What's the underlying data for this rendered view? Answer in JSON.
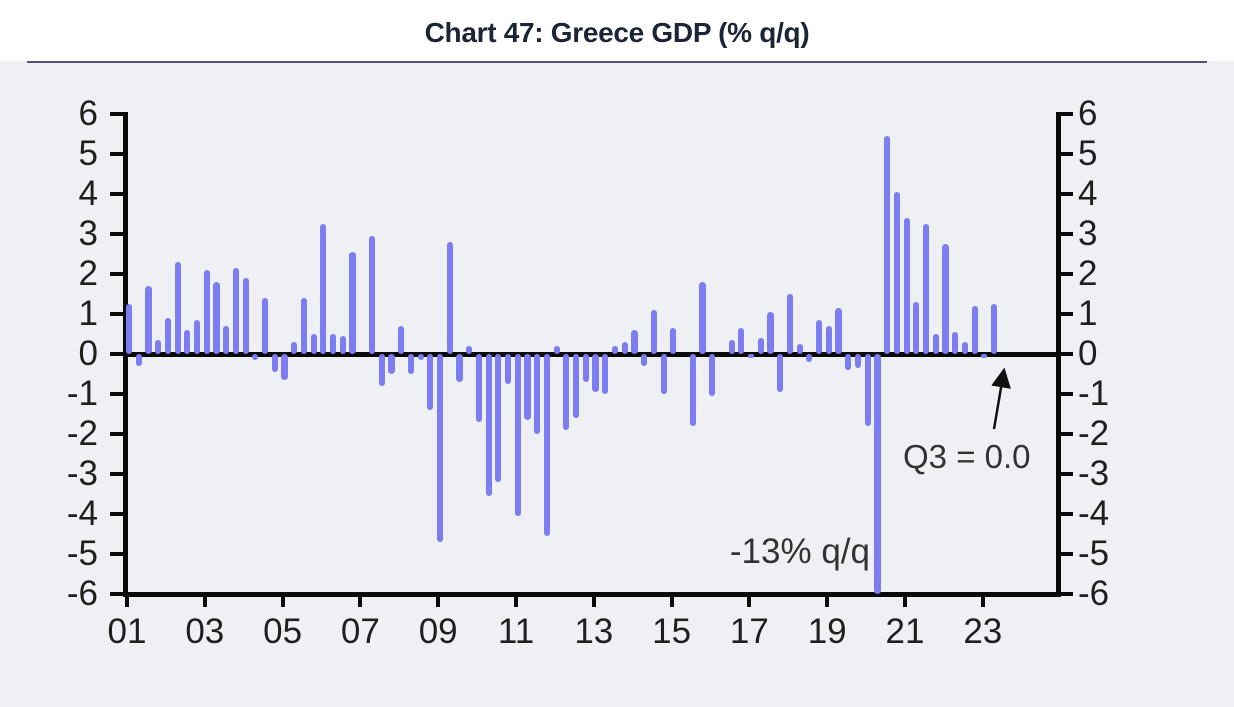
{
  "header": {
    "title": "Chart 47: Greece GDP (% q/q)"
  },
  "chart_data": {
    "type": "bar",
    "title": "Chart 47: Greece GDP (% q/q)",
    "ylabel": "% q/q",
    "xlabel": "",
    "ylim": [
      -6,
      6
    ],
    "grid": "off",
    "legend": "none",
    "dual_axis": true,
    "bar_color": "#7b7df0",
    "yticks": [
      6,
      5,
      4,
      3,
      2,
      1,
      0,
      -1,
      -2,
      -3,
      -4,
      -5,
      -6
    ],
    "xticks": [
      "01",
      "03",
      "05",
      "07",
      "09",
      "11",
      "13",
      "15",
      "17",
      "19",
      "21",
      "23"
    ],
    "categories": [
      "2001Q1",
      "2001Q2",
      "2001Q3",
      "2001Q4",
      "2002Q1",
      "2002Q2",
      "2002Q3",
      "2002Q4",
      "2003Q1",
      "2003Q2",
      "2003Q3",
      "2003Q4",
      "2004Q1",
      "2004Q2",
      "2004Q3",
      "2004Q4",
      "2005Q1",
      "2005Q2",
      "2005Q3",
      "2005Q4",
      "2006Q1",
      "2006Q2",
      "2006Q3",
      "2006Q4",
      "2007Q1",
      "2007Q2",
      "2007Q3",
      "2007Q4",
      "2008Q1",
      "2008Q2",
      "2008Q3",
      "2008Q4",
      "2009Q1",
      "2009Q2",
      "2009Q3",
      "2009Q4",
      "2010Q1",
      "2010Q2",
      "2010Q3",
      "2010Q4",
      "2011Q1",
      "2011Q2",
      "2011Q3",
      "2011Q4",
      "2012Q1",
      "2012Q2",
      "2012Q3",
      "2012Q4",
      "2013Q1",
      "2013Q2",
      "2013Q3",
      "2013Q4",
      "2014Q1",
      "2014Q2",
      "2014Q3",
      "2014Q4",
      "2015Q1",
      "2015Q2",
      "2015Q3",
      "2015Q4",
      "2016Q1",
      "2016Q2",
      "2016Q3",
      "2016Q4",
      "2017Q1",
      "2017Q2",
      "2017Q3",
      "2017Q4",
      "2018Q1",
      "2018Q2",
      "2018Q3",
      "2018Q4",
      "2019Q1",
      "2019Q2",
      "2019Q3",
      "2019Q4",
      "2020Q1",
      "2020Q2",
      "2020Q3",
      "2020Q4",
      "2021Q1",
      "2021Q2",
      "2021Q3",
      "2021Q4",
      "2022Q1",
      "2022Q2",
      "2022Q3",
      "2022Q4",
      "2023Q1",
      "2023Q2",
      "2023Q3"
    ],
    "values": [
      1.25,
      -0.3,
      1.7,
      0.35,
      0.9,
      2.3,
      0.6,
      0.85,
      2.1,
      1.8,
      0.7,
      2.15,
      1.9,
      -0.15,
      1.4,
      -0.45,
      -0.65,
      0.3,
      1.4,
      0.5,
      3.25,
      0.5,
      0.45,
      2.55,
      0.0,
      2.95,
      -0.8,
      -0.5,
      0.7,
      -0.5,
      -0.15,
      -1.4,
      -4.7,
      2.8,
      -0.7,
      0.2,
      -1.7,
      -3.55,
      -3.2,
      -0.75,
      -4.05,
      -1.65,
      -2.0,
      -4.55,
      0.2,
      -1.9,
      -1.6,
      -0.7,
      -0.95,
      -1.0,
      0.2,
      0.3,
      0.6,
      -0.3,
      1.1,
      -1.0,
      0.65,
      0.0,
      -1.8,
      1.8,
      -1.05,
      0.0,
      0.35,
      0.65,
      -0.1,
      0.4,
      1.05,
      -0.95,
      1.5,
      0.25,
      -0.2,
      0.85,
      0.7,
      1.15,
      -0.4,
      -0.35,
      -1.8,
      -13.0,
      5.45,
      4.05,
      3.4,
      1.3,
      3.25,
      0.5,
      2.75,
      0.55,
      0.3,
      1.2,
      -0.1,
      1.25,
      0.0
    ],
    "clipped_bar": {
      "quarter": "2020Q2",
      "value": -13.0,
      "clipped_at": -6
    },
    "annotations": [
      {
        "text": "-13% q/q",
        "refers_to": "2020Q2"
      },
      {
        "text": "Q3 = 0.0",
        "refers_to": "2023Q3"
      }
    ]
  }
}
